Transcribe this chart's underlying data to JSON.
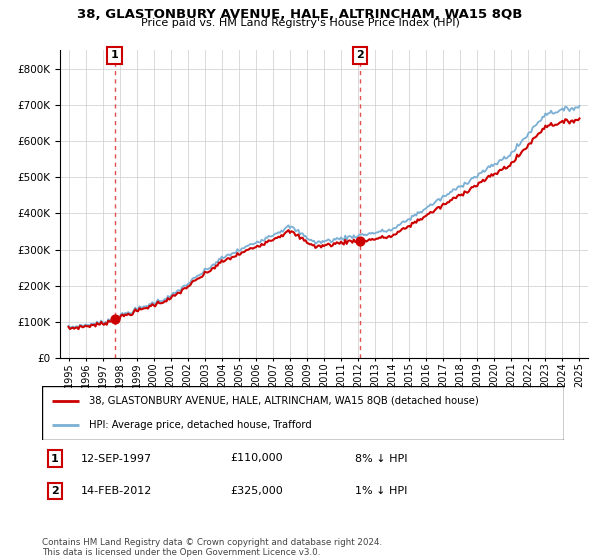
{
  "title": "38, GLASTONBURY AVENUE, HALE, ALTRINCHAM, WA15 8QB",
  "subtitle": "Price paid vs. HM Land Registry's House Price Index (HPI)",
  "legend_line1": "38, GLASTONBURY AVENUE, HALE, ALTRINCHAM, WA15 8QB (detached house)",
  "legend_line2": "HPI: Average price, detached house, Trafford",
  "annotation1_date": "12-SEP-1997",
  "annotation1_price": "£110,000",
  "annotation1_hpi": "8% ↓ HPI",
  "annotation2_date": "14-FEB-2012",
  "annotation2_price": "£325,000",
  "annotation2_hpi": "1% ↓ HPI",
  "footnote": "Contains HM Land Registry data © Crown copyright and database right 2024.\nThis data is licensed under the Open Government Licence v3.0.",
  "sale1_year": 1997.71,
  "sale1_value": 110000,
  "sale2_year": 2012.12,
  "sale2_value": 325000,
  "hpi_color": "#7bafd4",
  "price_color": "#cc0000",
  "dashed_color": "#e05050",
  "background_color": "#ffffff",
  "grid_color": "#cccccc",
  "ylim": [
    0,
    850000
  ],
  "xlim_start": 1994.5,
  "xlim_end": 2025.5,
  "ytick_step": 100000,
  "xtick_start": 1995,
  "xtick_end": 2025
}
